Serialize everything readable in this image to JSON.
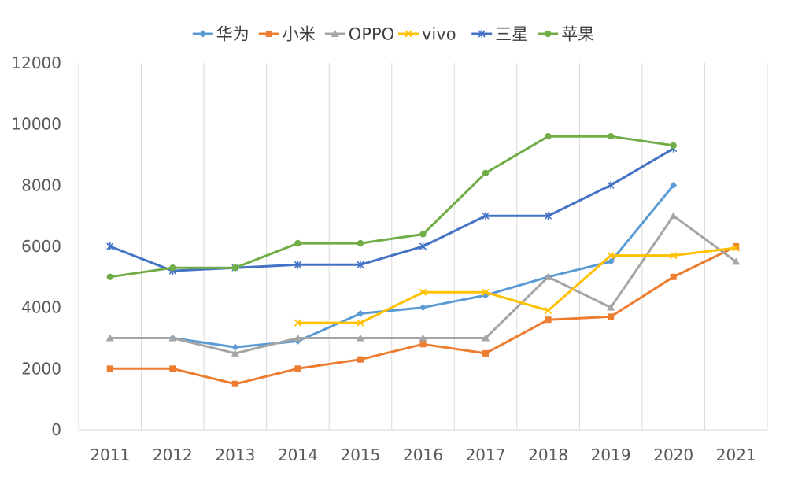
{
  "chart_data": {
    "type": "line",
    "title": "",
    "xlabel": "",
    "ylabel": "",
    "categories": [
      "2011",
      "2012",
      "2013",
      "2014",
      "2015",
      "2016",
      "2017",
      "2018",
      "2019",
      "2020",
      "2021"
    ],
    "ylim": [
      0,
      12000
    ],
    "yticks": [
      "0",
      "2000",
      "4000",
      "6000",
      "8000",
      "10000",
      "12000"
    ],
    "grid": "vertical",
    "legend_position": "top",
    "series": [
      {
        "name": "华为",
        "color": "#5B9BD5",
        "marker": "diamond",
        "values": [
          null,
          3000,
          2700,
          2900,
          3800,
          4000,
          4400,
          5000,
          5500,
          8000,
          null
        ]
      },
      {
        "name": "小米",
        "color": "#ED7D31",
        "marker": "square",
        "values": [
          2000,
          2000,
          1500,
          2000,
          2300,
          2800,
          2500,
          3600,
          3700,
          5000,
          6000
        ]
      },
      {
        "name": "OPPO",
        "color": "#A5A5A5",
        "marker": "triangle",
        "values": [
          3000,
          3000,
          2500,
          3000,
          3000,
          3000,
          3000,
          5000,
          4000,
          7000,
          5500
        ]
      },
      {
        "name": "vivo",
        "color": "#FFC000",
        "marker": "x",
        "values": [
          null,
          null,
          null,
          3500,
          3500,
          4500,
          4500,
          3900,
          5700,
          5700,
          5950
        ]
      },
      {
        "name": "三星",
        "color": "#4472C4",
        "marker": "star",
        "values": [
          6000,
          5200,
          5300,
          5400,
          5400,
          6000,
          7000,
          7000,
          8000,
          9200,
          null
        ]
      },
      {
        "name": "苹果",
        "color": "#70AD47",
        "marker": "circle",
        "values": [
          5000,
          5300,
          5300,
          6100,
          6100,
          6400,
          8400,
          9600,
          9600,
          9300,
          null
        ]
      }
    ]
  }
}
